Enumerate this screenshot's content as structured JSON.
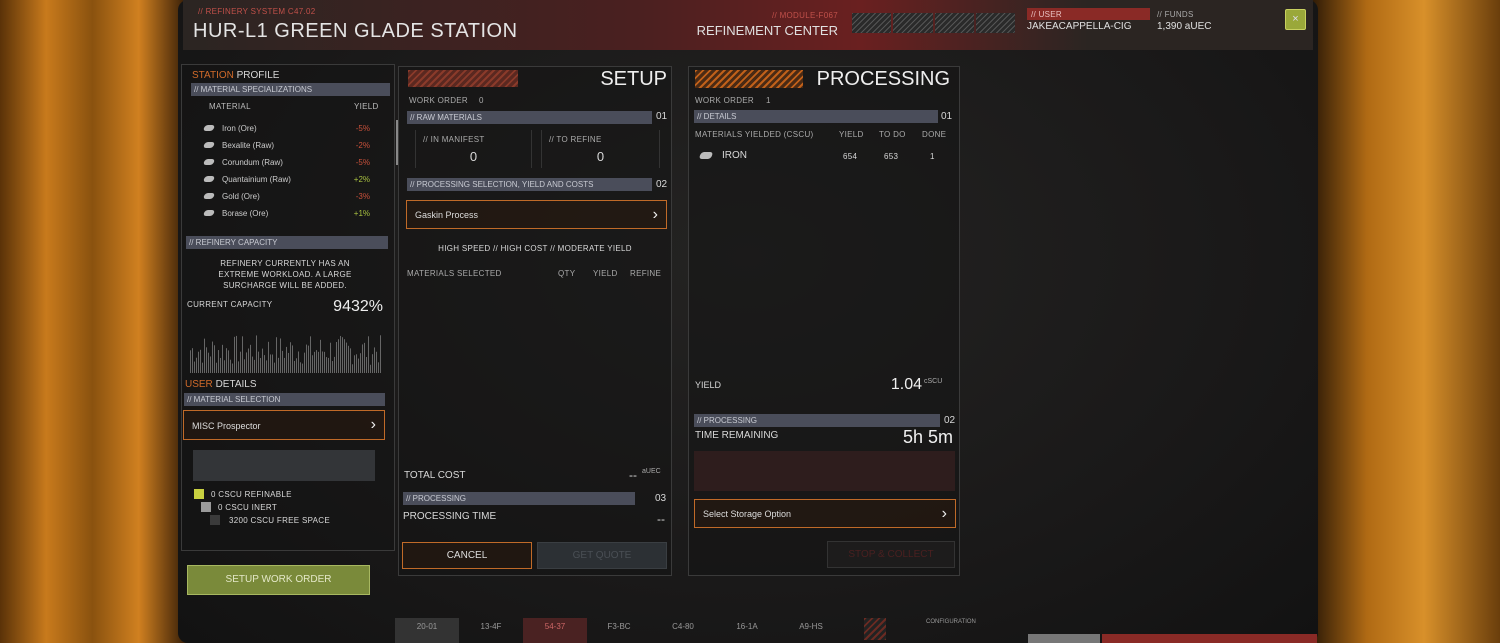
{
  "header": {
    "system": "// REFINERY SYSTEM C47.02",
    "title": "HUR-L1 GREEN GLADE STATION",
    "module": "// MODULE-F067",
    "center": "REFINEMENT CENTER",
    "user_label": "// USER",
    "user": "JAKEACAPPELLA-CIG",
    "funds_label": "// FUNDS",
    "funds": "1,390 aUEC",
    "close_icon": "close-icon",
    "accent": "#c0504a",
    "close_color": "#9aa83a"
  },
  "station": {
    "title_a": "STATION",
    "title_b": "PROFILE",
    "spec_label": "// MATERIAL SPECIALIZATIONS",
    "col_material": "MATERIAL",
    "col_yield": "YIELD",
    "materials": [
      {
        "name": "Iron (Ore)",
        "yield": "-5%",
        "color": "#c8503a"
      },
      {
        "name": "Bexalite (Raw)",
        "yield": "-2%",
        "color": "#c8503a"
      },
      {
        "name": "Corundum (Raw)",
        "yield": "-5%",
        "color": "#c8503a"
      },
      {
        "name": "Quantainium (Raw)",
        "yield": "+2%",
        "color": "#a8c040"
      },
      {
        "name": "Gold (Ore)",
        "yield": "-3%",
        "color": "#c8503a"
      },
      {
        "name": "Borase (Ore)",
        "yield": "+1%",
        "color": "#a8c040"
      }
    ],
    "capacity_label": "// REFINERY CAPACITY",
    "capacity_msg": "REFINERY CURRENTLY HAS AN EXTREME WORKLOAD. A LARGE SURCHARGE WILL BE ADDED.",
    "current_label": "CURRENT CAPACITY",
    "current_value": "9432%"
  },
  "user": {
    "title_a": "USER",
    "title_b": "DETAILS",
    "sel_label": "// MATERIAL SELECTION",
    "ship": "MISC Prospector",
    "refinable": "0 CSCU REFINABLE",
    "inert": "0 CSCU INERT",
    "free": "3200 CSCU FREE SPACE",
    "setup_btn": "SETUP WORK ORDER"
  },
  "setup": {
    "title": "SETUP",
    "wo_label": "WORK ORDER",
    "wo": "0",
    "raw_label": "// RAW MATERIALS",
    "raw_num": "01",
    "manifest_label": "// IN MANIFEST",
    "manifest": "0",
    "torefine_label": "// TO REFINE",
    "torefine": "0",
    "proc_label": "// PROCESSING SELECTION, YIELD AND COSTS",
    "proc_num": "02",
    "process": "Gaskin Process",
    "process_desc": "HIGH SPEED // HIGH COST // MODERATE YIELD",
    "col_sel": "MATERIALS SELECTED",
    "col_qty": "QTY",
    "col_yield": "YIELD",
    "col_refine": "REFINE",
    "total_label": "TOTAL COST",
    "total": "--",
    "total_unit": "aUEC",
    "p_label": "// PROCESSING",
    "p_num": "03",
    "ptime_label": "PROCESSING TIME",
    "ptime": "--",
    "cancel": "CANCEL",
    "quote": "GET QUOTE"
  },
  "processing": {
    "title": "PROCESSING",
    "wo_label": "WORK ORDER",
    "wo": "1",
    "det_label": "// DETAILS",
    "det_num": "01",
    "col_mat": "MATERIALS YIELDED (CSCU)",
    "col_yield": "YIELD",
    "col_todo": "TO DO",
    "col_done": "DONE",
    "rows": [
      {
        "name": "IRON",
        "yield": "654",
        "todo": "653",
        "done": "1"
      }
    ],
    "yield_label": "YIELD",
    "yield": "1.04",
    "yield_unit": "cSCU",
    "p_label": "// PROCESSING",
    "p_num": "02",
    "time_label": "TIME REMAINING",
    "time": "5h 5m",
    "storage": "Select Storage Option",
    "stop": "STOP & COLLECT"
  },
  "bottom": {
    "codes": [
      "20-01",
      "13-4F",
      "54-37",
      "F3-BC",
      "C4-80",
      "16-1A",
      "A9-HS"
    ],
    "config": "CONFIGURATION"
  }
}
